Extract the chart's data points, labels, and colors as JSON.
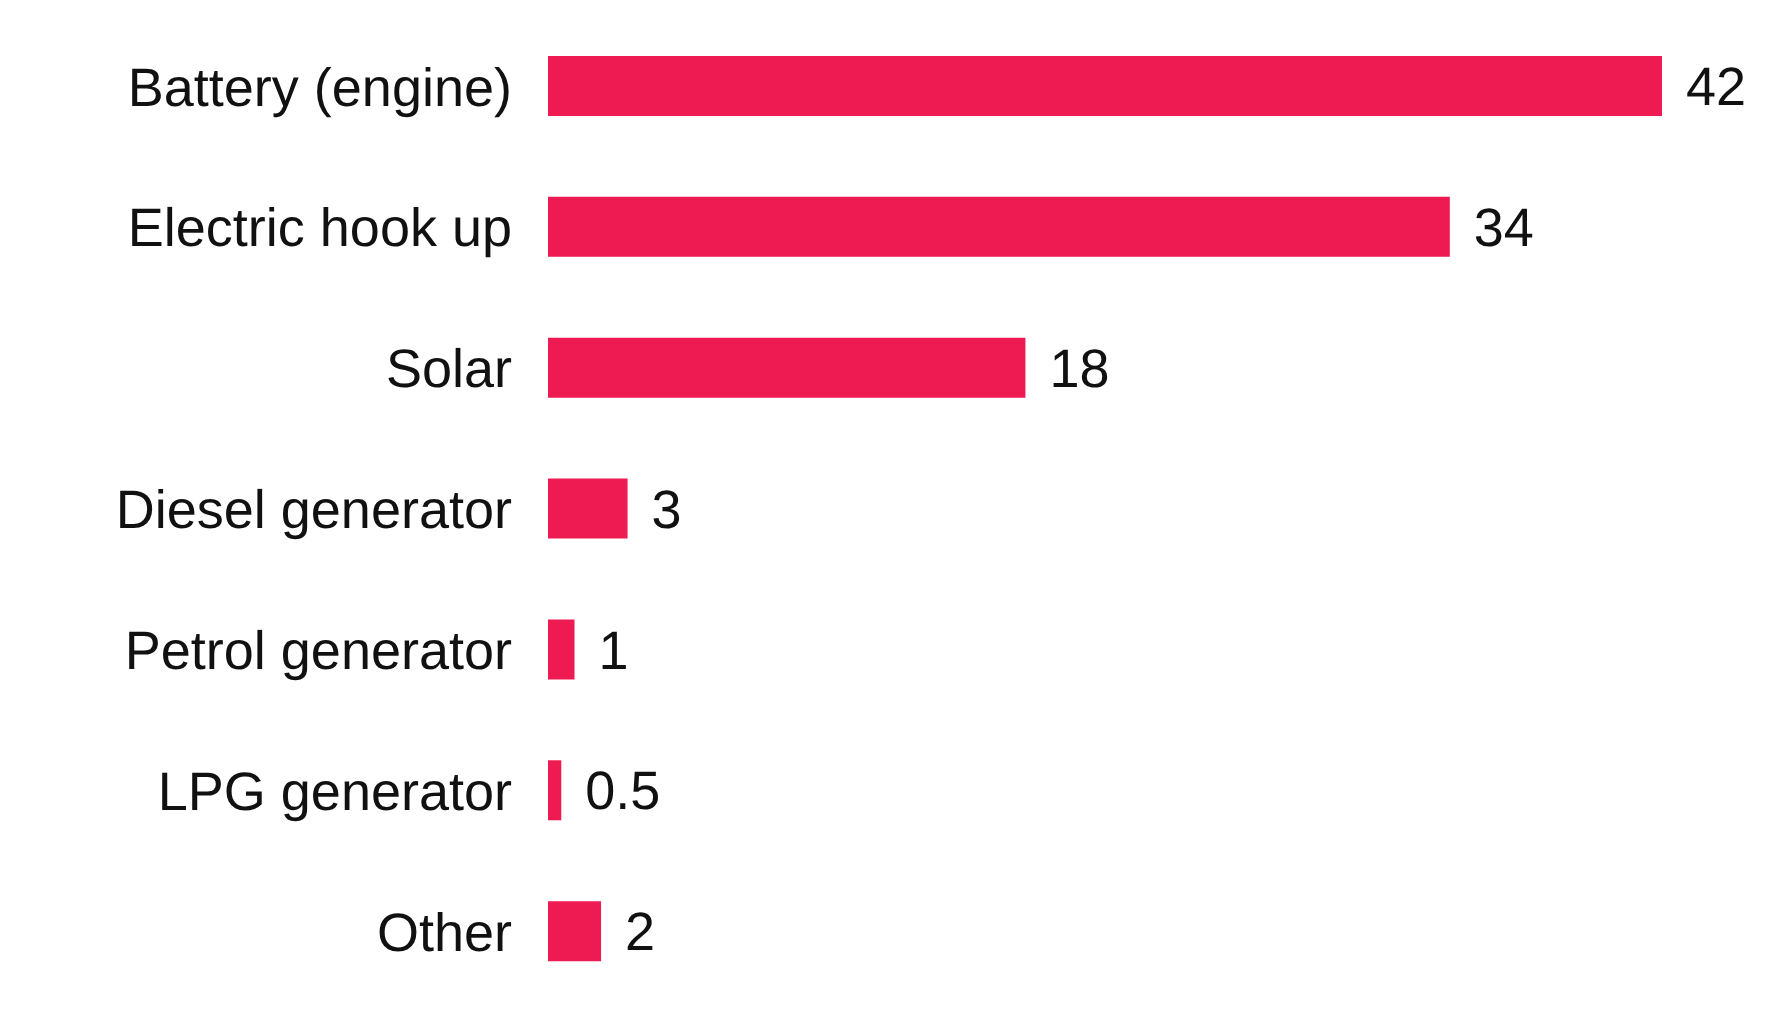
{
  "chart_data": {
    "type": "bar",
    "orientation": "horizontal",
    "categories": [
      "Battery (engine)",
      "Electric hook up",
      "Solar",
      "Diesel generator",
      "Petrol generator",
      "LPG generator",
      "Other"
    ],
    "values": [
      42,
      34,
      18,
      3,
      1,
      0.5,
      2
    ],
    "color": "#ee1a52",
    "data_labels": true
  }
}
